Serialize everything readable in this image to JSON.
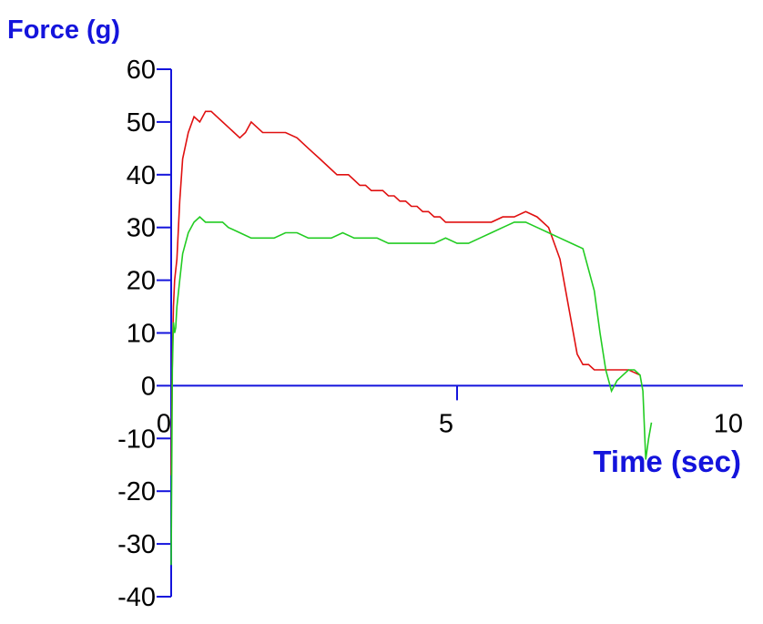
{
  "chart_data": {
    "type": "line",
    "title": "",
    "ylabel": "Force (g)",
    "xlabel": "Time (sec)",
    "xlim": [
      0,
      10
    ],
    "ylim": [
      -40,
      60
    ],
    "x_ticks": [
      {
        "label": "0",
        "value": 0
      },
      {
        "label": "5",
        "value": 5
      },
      {
        "label": "10",
        "value": 10
      }
    ],
    "y_ticks": [
      {
        "label": "60",
        "value": 60
      },
      {
        "label": "50",
        "value": 50
      },
      {
        "label": "40",
        "value": 40
      },
      {
        "label": "30",
        "value": 30
      },
      {
        "label": "20",
        "value": 20
      },
      {
        "label": "10",
        "value": 10
      },
      {
        "label": "0",
        "value": 0
      },
      {
        "label": "-10",
        "value": -10
      },
      {
        "label": "-20",
        "value": -20
      },
      {
        "label": "-30",
        "value": -30
      },
      {
        "label": "-40",
        "value": -40
      }
    ],
    "grid": false,
    "axis_color": "#1414dc",
    "series": [
      {
        "color": "#e01010",
        "x": [
          0.0,
          0.02,
          0.04,
          0.06,
          0.1,
          0.15,
          0.2,
          0.3,
          0.4,
          0.5,
          0.6,
          0.7,
          0.8,
          0.9,
          1.0,
          1.1,
          1.2,
          1.3,
          1.4,
          1.5,
          1.6,
          1.7,
          1.8,
          1.9,
          2.0,
          2.2,
          2.4,
          2.6,
          2.8,
          2.9,
          3.0,
          3.1,
          3.2,
          3.3,
          3.4,
          3.5,
          3.6,
          3.7,
          3.8,
          3.9,
          4.0,
          4.1,
          4.2,
          4.3,
          4.4,
          4.5,
          4.6,
          4.7,
          4.8,
          4.9,
          5.0,
          5.2,
          5.4,
          5.6,
          5.8,
          6.0,
          6.2,
          6.4,
          6.6,
          6.8,
          6.9,
          7.0,
          7.1,
          7.2,
          7.3,
          7.4,
          7.5,
          7.6,
          7.7,
          7.8,
          8.0,
          8.2
        ],
        "y": [
          -17,
          5,
          15,
          20,
          24,
          35,
          43,
          48,
          51,
          50,
          52,
          52,
          51,
          50,
          49,
          48,
          47,
          48,
          50,
          49,
          48,
          48,
          48,
          48,
          48,
          47,
          45,
          43,
          41,
          40,
          40,
          40,
          39,
          38,
          38,
          37,
          37,
          37,
          36,
          36,
          35,
          35,
          34,
          34,
          33,
          33,
          32,
          32,
          31,
          31,
          31,
          31,
          31,
          31,
          32,
          32,
          33,
          32,
          30,
          24,
          18,
          12,
          6,
          4,
          4,
          3,
          3,
          3,
          3,
          3,
          3,
          2
        ]
      },
      {
        "color": "#22cc22",
        "x": [
          0.0,
          0.02,
          0.04,
          0.06,
          0.08,
          0.1,
          0.15,
          0.2,
          0.25,
          0.3,
          0.4,
          0.5,
          0.6,
          0.7,
          0.8,
          0.9,
          1.0,
          1.2,
          1.4,
          1.6,
          1.8,
          2.0,
          2.2,
          2.4,
          2.6,
          2.8,
          3.0,
          3.2,
          3.4,
          3.6,
          3.8,
          4.0,
          4.2,
          4.4,
          4.6,
          4.8,
          5.0,
          5.2,
          5.4,
          5.6,
          5.8,
          6.0,
          6.2,
          6.4,
          6.6,
          6.8,
          7.0,
          7.2,
          7.4,
          7.5,
          7.6,
          7.7,
          7.8,
          7.9,
          8.0,
          8.1,
          8.2,
          8.25,
          8.3,
          8.35,
          8.4
        ],
        "y": [
          -34,
          3,
          12,
          10,
          11,
          15,
          20,
          25,
          27,
          29,
          31,
          32,
          31,
          31,
          31,
          31,
          30,
          29,
          28,
          28,
          28,
          29,
          29,
          28,
          28,
          28,
          29,
          28,
          28,
          28,
          27,
          27,
          27,
          27,
          27,
          28,
          27,
          27,
          28,
          29,
          30,
          31,
          31,
          30,
          29,
          28,
          27,
          26,
          18,
          10,
          3,
          -1,
          1,
          2,
          3,
          3,
          2,
          -1,
          -14,
          -10,
          -7
        ]
      }
    ]
  }
}
